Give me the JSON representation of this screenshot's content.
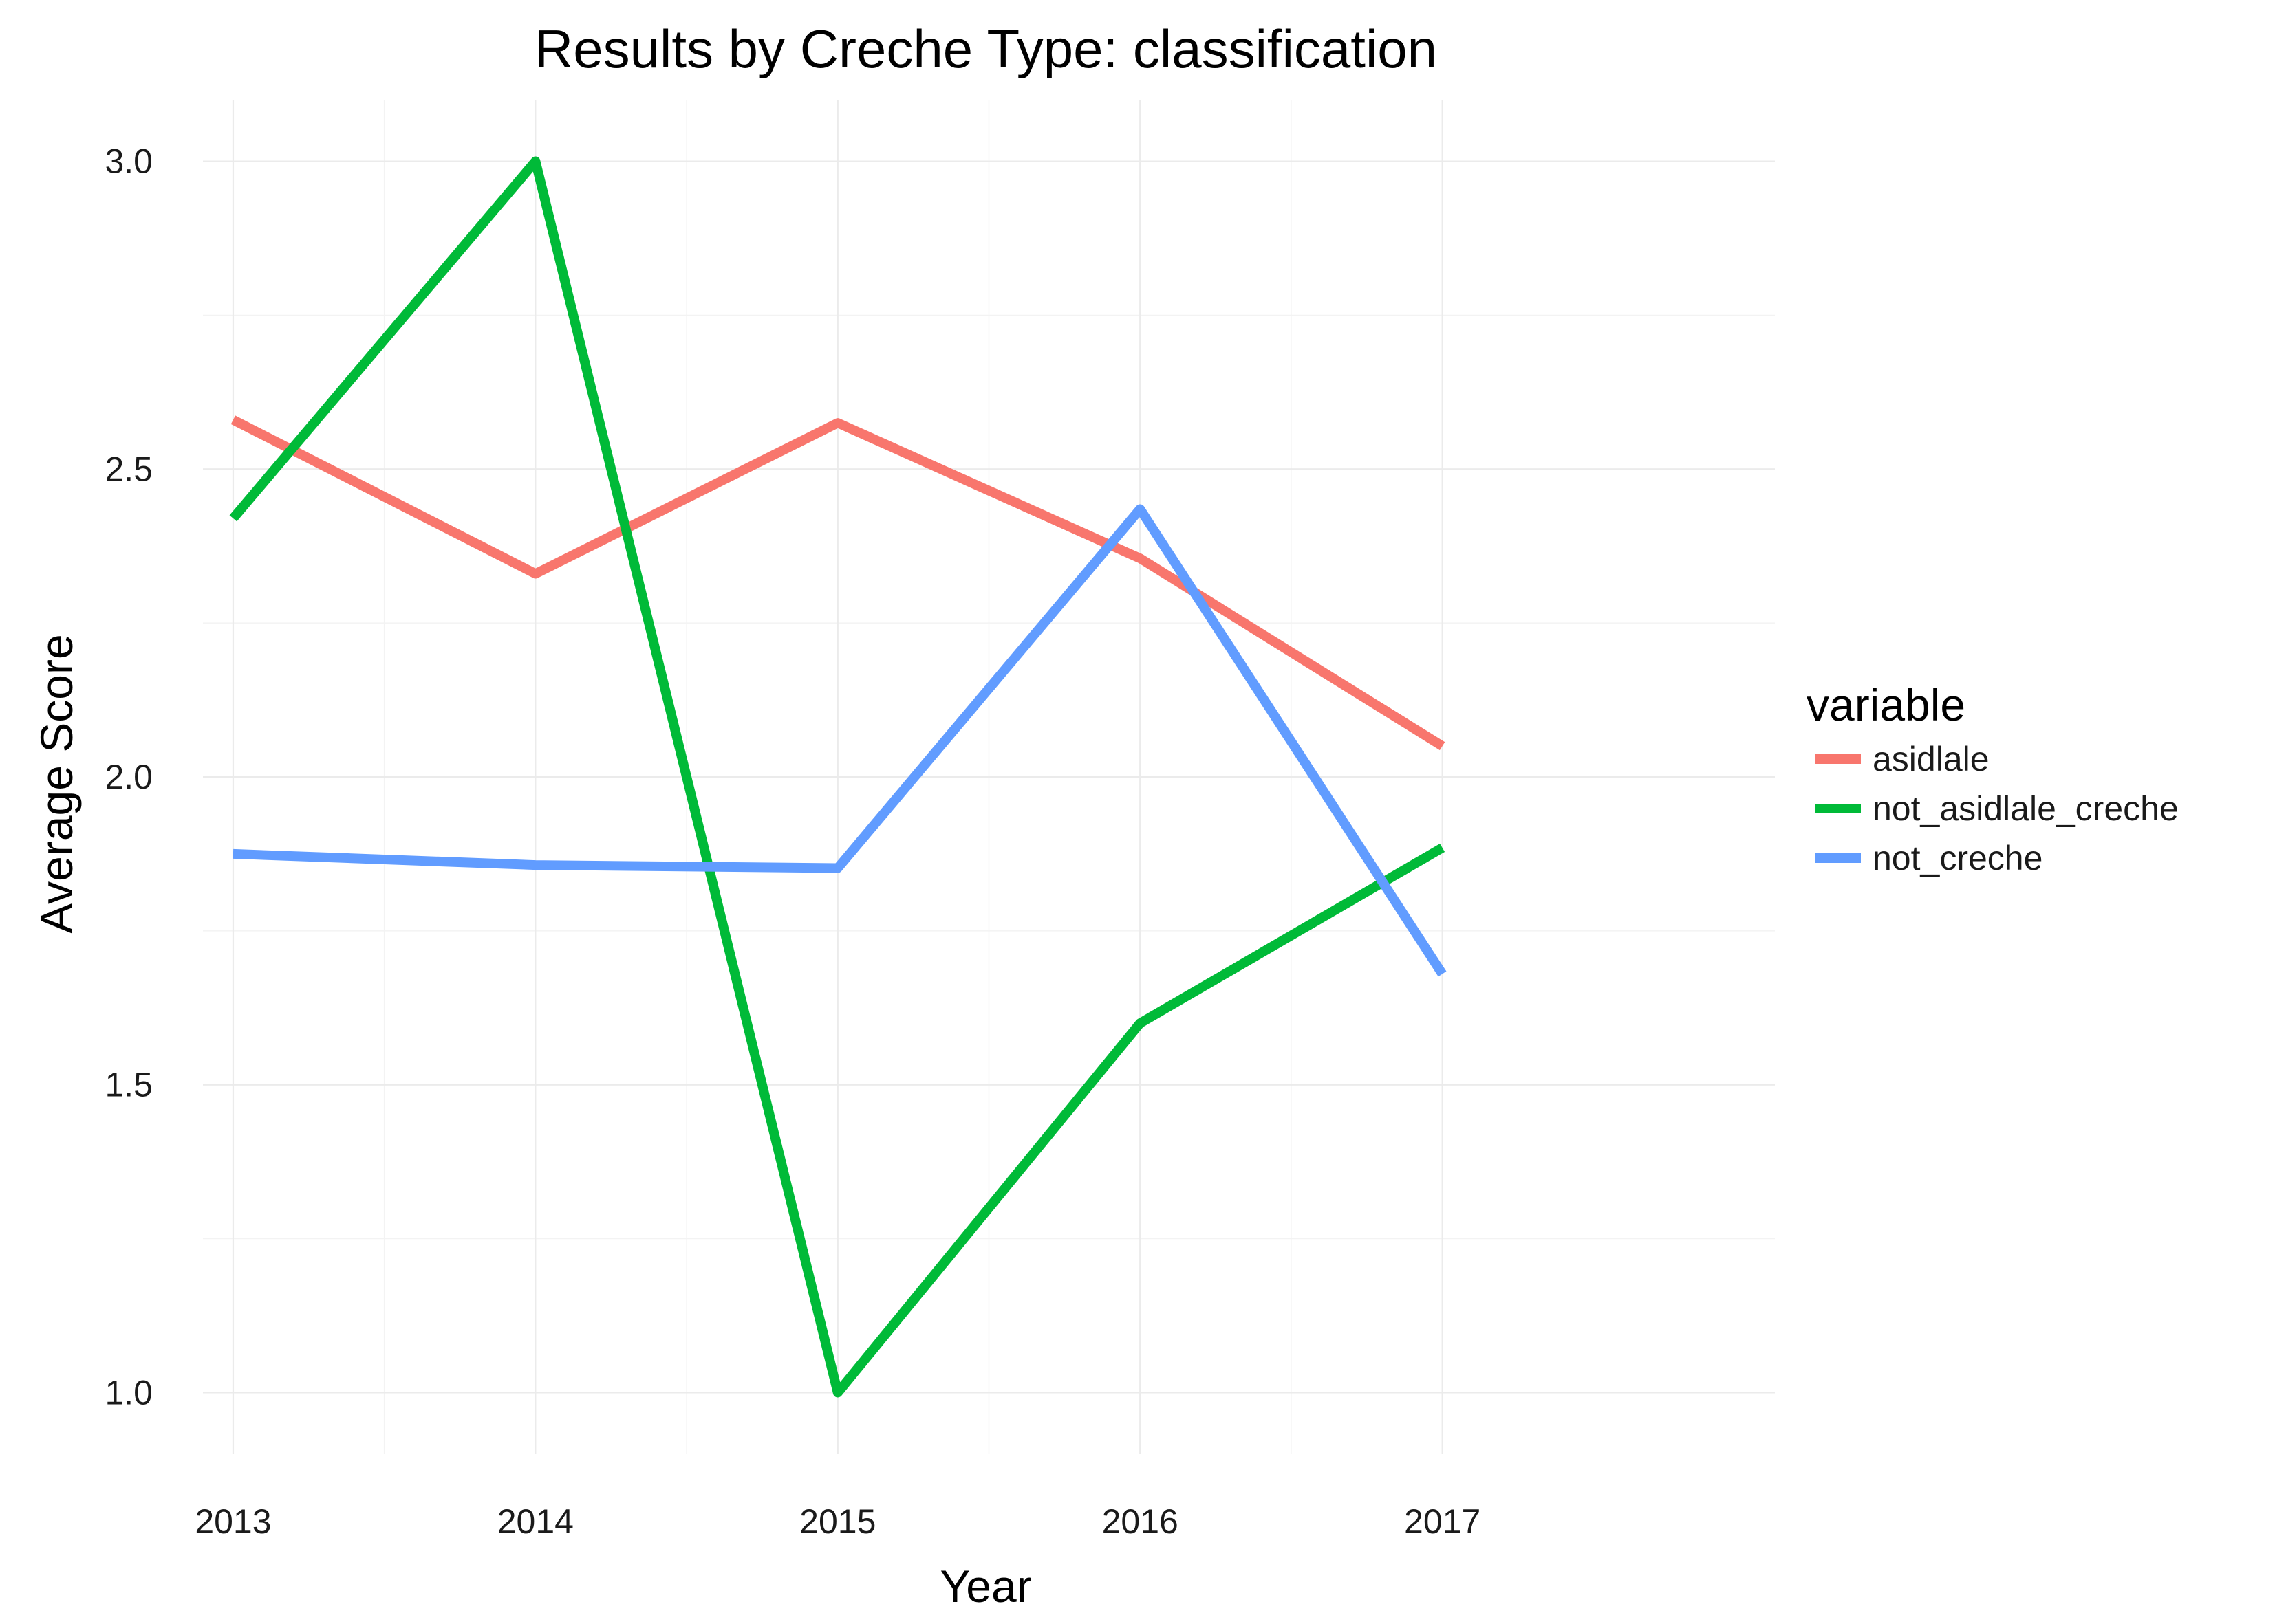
{
  "chart_data": {
    "type": "line",
    "title": "Results by Creche Type: classification",
    "xlabel": "Year",
    "ylabel": "Average Score",
    "x": [
      2013,
      2014,
      2015,
      2016,
      2017
    ],
    "x_tick_labels": [
      "2013",
      "2014",
      "2015",
      "2016",
      "2017"
    ],
    "y_ticks": [
      1.0,
      1.5,
      2.0,
      2.5,
      3.0
    ],
    "y_tick_labels": [
      "1.0",
      "1.5",
      "2.0",
      "2.5",
      "3.0"
    ],
    "xlim": [
      2012.9,
      2018.1
    ],
    "ylim": [
      0.9,
      3.1
    ],
    "grid": true,
    "legend": {
      "title": "variable",
      "position": "right"
    },
    "series": [
      {
        "name": "asidlale",
        "color": "#F8766D",
        "values": [
          2.58,
          2.33,
          2.575,
          2.355,
          2.05
        ]
      },
      {
        "name": "not_asidlale_creche",
        "color": "#00BA38",
        "values": [
          2.42,
          3.0,
          1.0,
          1.6,
          1.885
        ]
      },
      {
        "name": "not_creche",
        "color": "#619CFF",
        "values": [
          1.875,
          1.857,
          1.852,
          2.435,
          1.68
        ]
      }
    ]
  }
}
